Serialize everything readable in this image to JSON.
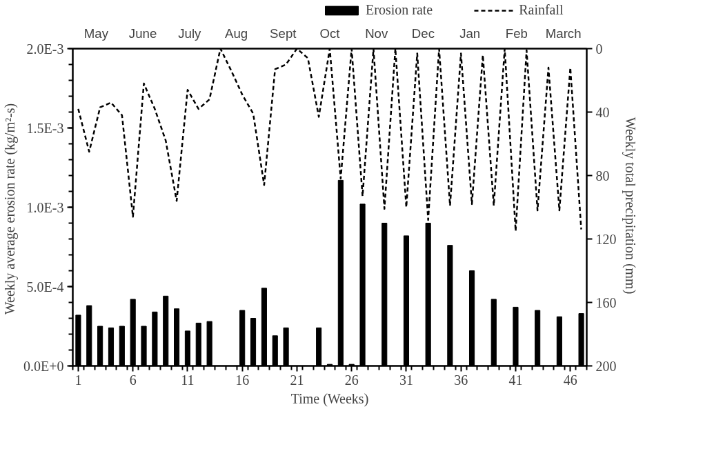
{
  "chart_data": {
    "type": "bar",
    "xlabel": "Time (Weeks)",
    "ylabel": "Weekly  average erosion rate (kg/m²-s)",
    "y2label": "Weekly  total precipitation (mm)",
    "annotations": [
      "May",
      "June",
      "July",
      "Aug",
      "Sept",
      "Oct",
      "Nov",
      "Dec",
      "Jan",
      "Feb",
      "March"
    ],
    "x": [
      1,
      2,
      3,
      4,
      5,
      6,
      7,
      8,
      9,
      10,
      11,
      12,
      13,
      14,
      15,
      16,
      17,
      18,
      19,
      20,
      21,
      22,
      23,
      24,
      25,
      26,
      27,
      28,
      29,
      30,
      31,
      32,
      33,
      34,
      35,
      36,
      37,
      38,
      39,
      40,
      41,
      42,
      43,
      44,
      45,
      46,
      47
    ],
    "series": [
      {
        "name": "Erosion rate",
        "color": "#000000",
        "values": [
          0.00032,
          0.00038,
          0.00025,
          0.00024,
          0.00025,
          0.00042,
          0.00025,
          0.00034,
          0.00044,
          0.00036,
          0.00022,
          0.00027,
          0.00028,
          0,
          0,
          0.00035,
          0.0003,
          0.00049,
          0.00019,
          0.00024,
          0,
          0,
          0.00024,
          1e-05,
          0.00117,
          1e-05,
          0.00102,
          0,
          0.0009,
          0,
          0.00082,
          0,
          0.0009,
          0,
          0.00076,
          0,
          0.0006,
          0,
          0.00042,
          0,
          0.00037,
          0,
          0.00035,
          0,
          0.00031,
          0,
          0.00033
        ]
      },
      {
        "name": "Rainfall",
        "type": "line",
        "axis": "y2",
        "line_style": "dashed",
        "color": "#000000",
        "values": [
          38,
          65,
          37,
          34,
          42,
          106,
          22,
          38,
          58,
          96,
          26,
          38,
          32,
          0,
          14,
          29,
          41,
          86,
          13,
          10,
          0,
          6,
          43,
          0,
          82,
          0,
          93,
          0,
          101,
          0,
          100,
          3,
          108,
          0,
          99,
          3,
          98,
          4,
          99,
          0,
          115,
          1,
          102,
          12,
          102,
          12,
          114
        ]
      }
    ],
    "xlim": [
      0.5,
      47.5
    ],
    "xticks": [
      1,
      6,
      11,
      16,
      21,
      26,
      31,
      36,
      41,
      46
    ],
    "ylim": [
      0,
      0.002
    ],
    "yticks": [
      {
        "value": 0,
        "label": "0.0E+0"
      },
      {
        "value": 0.0005,
        "label": "5.0E-4"
      },
      {
        "value": 0.001,
        "label": "1.0E-3"
      },
      {
        "value": 0.0015,
        "label": "1.5E-3"
      },
      {
        "value": 0.002,
        "label": "2.0E-3"
      }
    ],
    "y2lim": [
      200,
      0
    ],
    "y2ticks": [
      0,
      40,
      80,
      120,
      160,
      200
    ],
    "legend": "top",
    "grid": false
  }
}
